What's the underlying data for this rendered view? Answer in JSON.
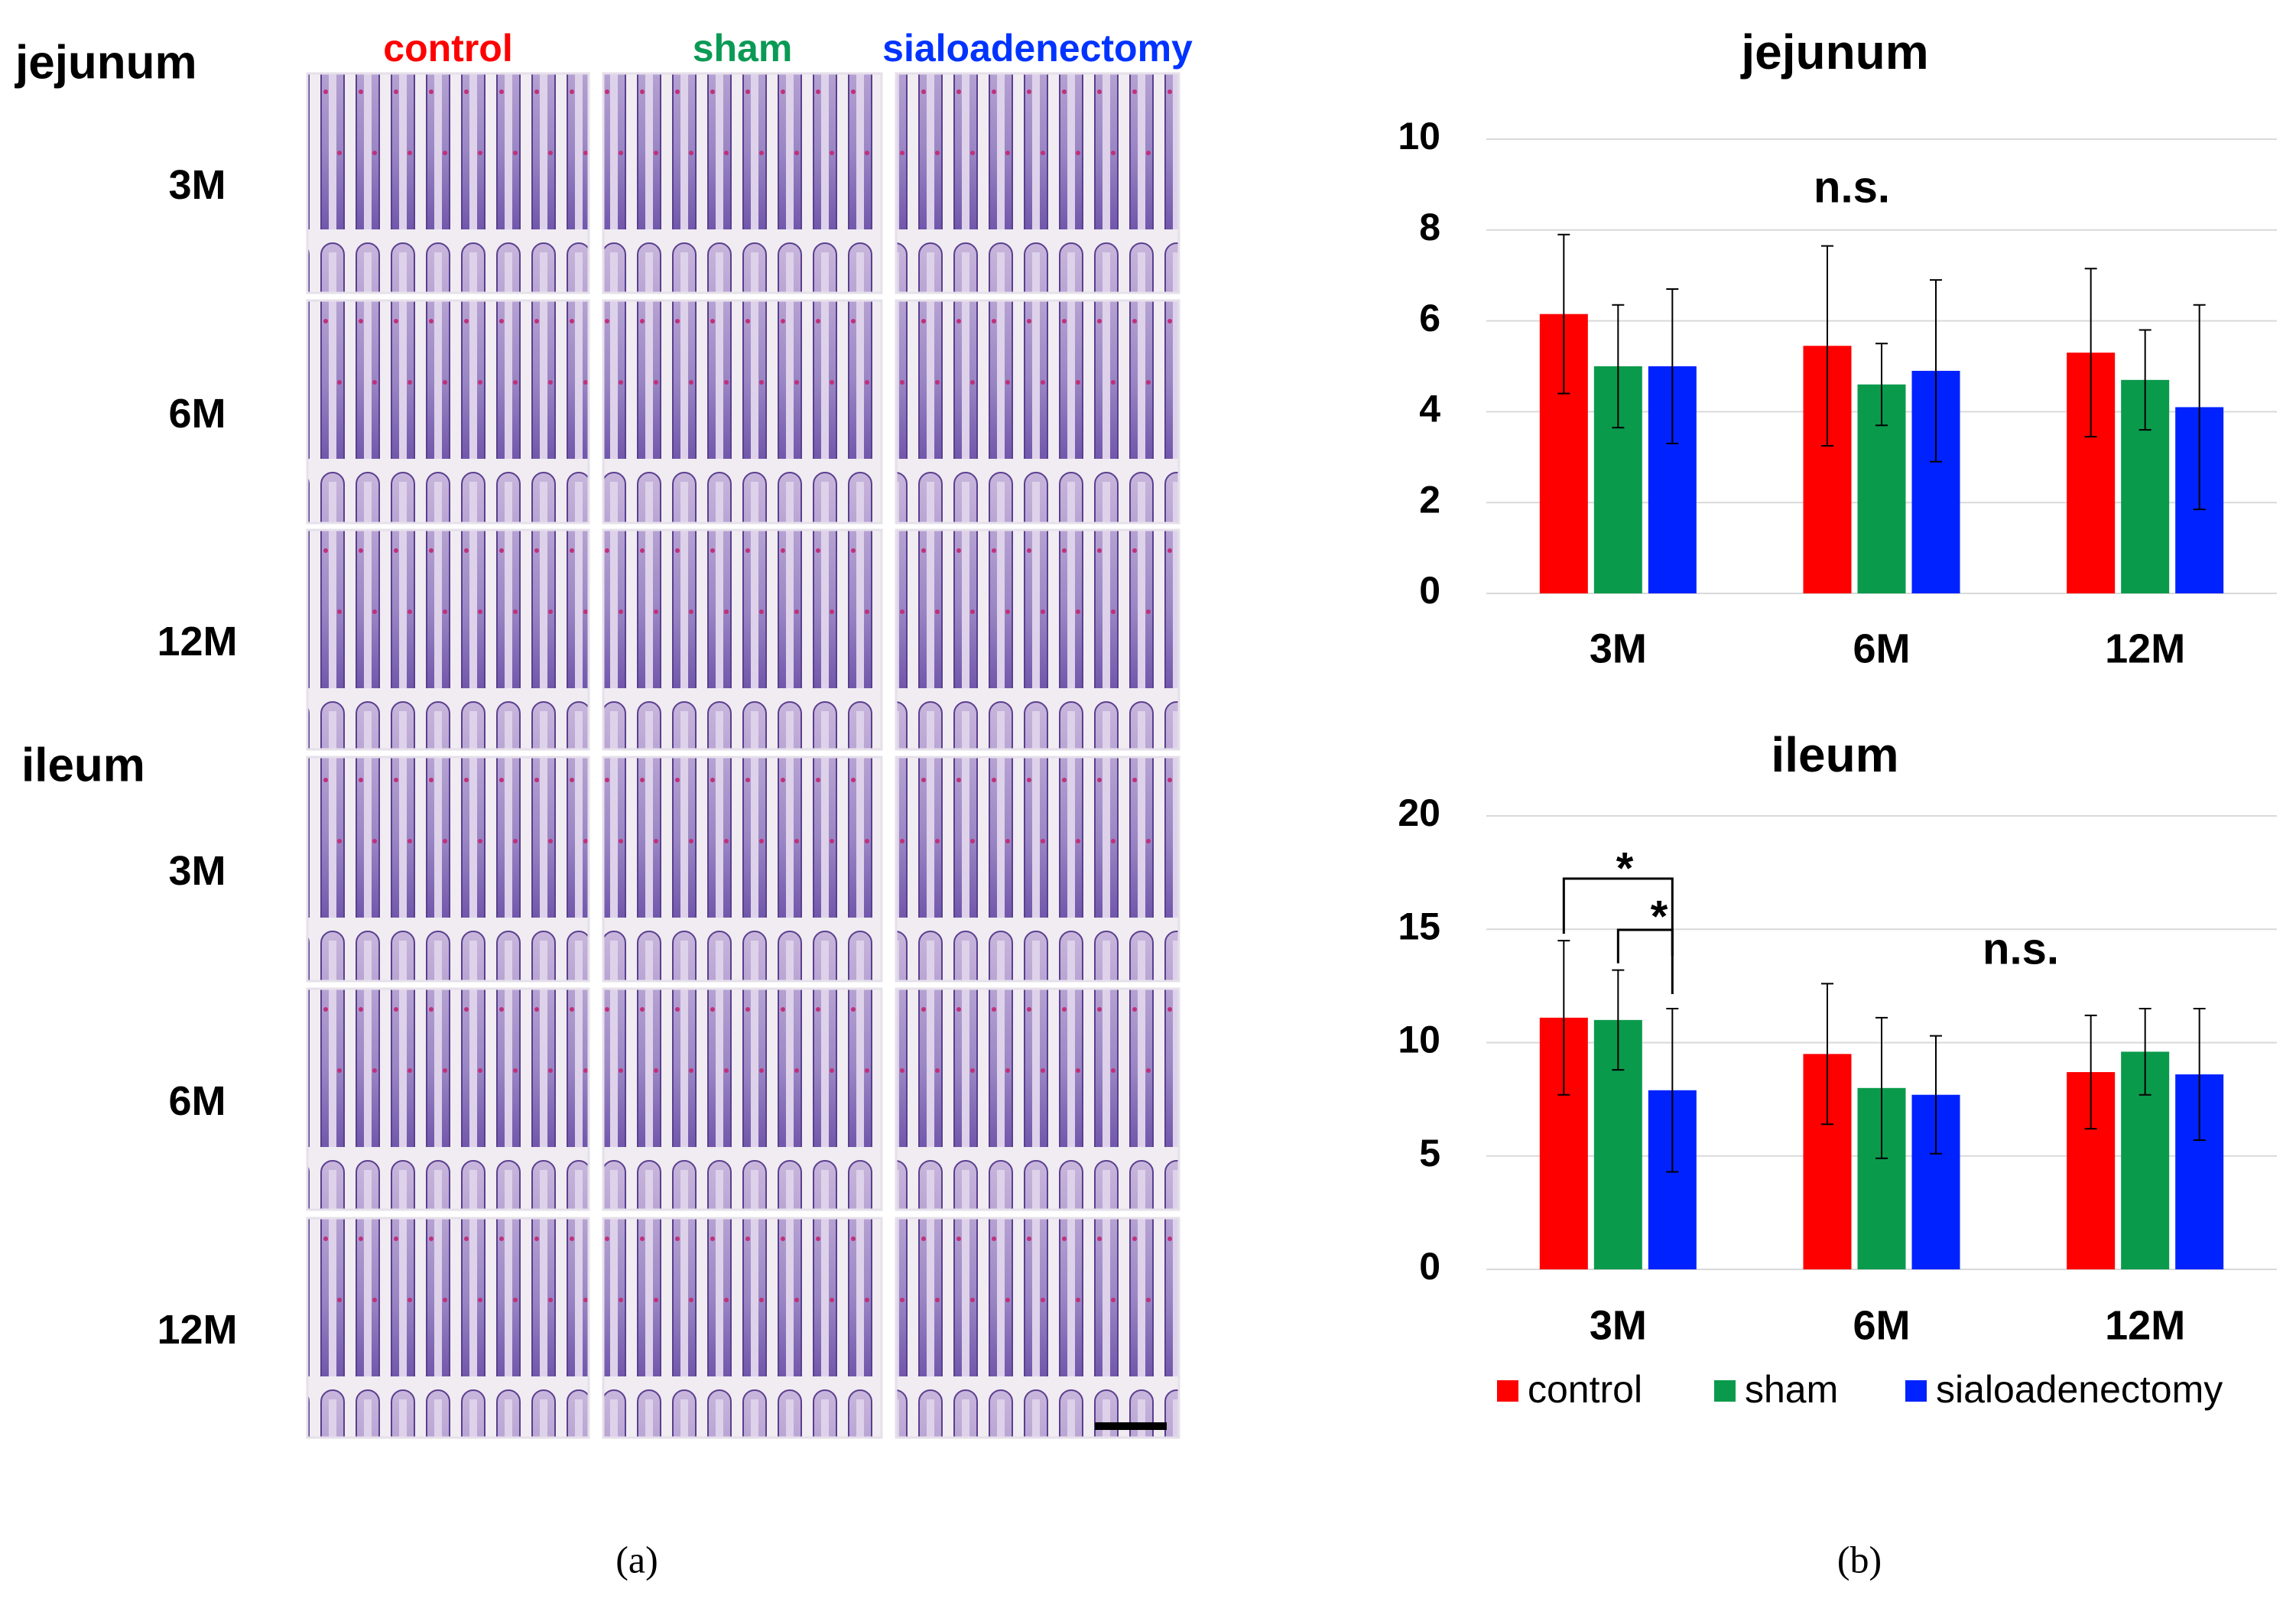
{
  "panel_a": {
    "columns": [
      "control",
      "sham",
      "sialoadenectomy"
    ],
    "column_colors": [
      "#ff0000",
      "#0a9a55",
      "#0033ff"
    ],
    "sections": [
      {
        "label": "jejunum",
        "rows": [
          "3M",
          "6M",
          "12M"
        ]
      },
      {
        "label": "ileum",
        "rows": [
          "3M",
          "6M",
          "12M"
        ]
      }
    ]
  },
  "panel_labels": [
    "(a)",
    "(b)"
  ],
  "chart_data": [
    {
      "type": "bar",
      "title": "jejunum",
      "categories": [
        "3M",
        "6M",
        "12M"
      ],
      "ylim": [
        0,
        10
      ],
      "yticks": [
        0,
        2,
        4,
        6,
        8,
        10
      ],
      "grid": true,
      "annotations": [
        "n.s."
      ],
      "series": [
        {
          "color": "#ff0000",
          "values": [
            6.15,
            5.45,
            5.3
          ],
          "errors": [
            1.75,
            2.2,
            1.85
          ]
        },
        {
          "color": "#0a9a4c",
          "values": [
            5.0,
            4.6,
            4.7
          ],
          "errors": [
            1.35,
            0.9,
            1.1
          ]
        },
        {
          "color": "#0022ff",
          "values": [
            5.0,
            4.9,
            4.1
          ],
          "errors": [
            1.7,
            2.0,
            2.25
          ]
        }
      ]
    },
    {
      "type": "bar",
      "title": "ileum",
      "categories": [
        "3M",
        "6M",
        "12M"
      ],
      "ylim": [
        0,
        20
      ],
      "yticks": [
        0,
        5,
        10,
        15,
        20
      ],
      "grid": true,
      "annotations": [
        "*",
        "*",
        "n.s."
      ],
      "legend": "bottom",
      "series": [
        {
          "name": "control",
          "color": "#ff0000",
          "values": [
            11.1,
            9.5,
            8.7
          ],
          "errors": [
            3.4,
            3.1,
            2.5
          ]
        },
        {
          "name": "sham",
          "color": "#0a9a4c",
          "values": [
            11.0,
            8.0,
            9.6
          ],
          "errors": [
            2.2,
            3.1,
            1.9
          ]
        },
        {
          "name": "sialoadenectomy",
          "color": "#0022ff",
          "values": [
            7.9,
            7.7,
            8.6
          ],
          "errors": [
            3.6,
            2.6,
            2.9
          ]
        }
      ]
    }
  ]
}
